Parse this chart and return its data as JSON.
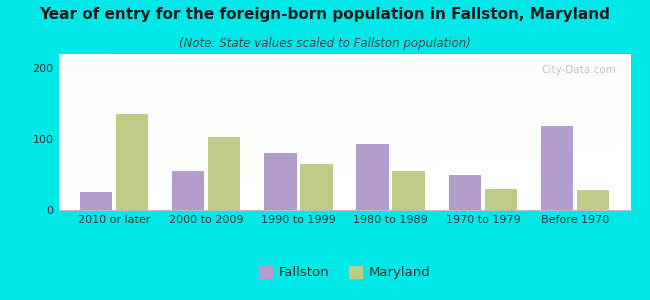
{
  "title": "Year of entry for the foreign-born population in Fallston, Maryland",
  "subtitle": "(Note: State values scaled to Fallston population)",
  "categories": [
    "2010 or later",
    "2000 to 2009",
    "1990 to 1999",
    "1980 to 1989",
    "1970 to 1979",
    "Before 1970"
  ],
  "fallston_values": [
    25,
    55,
    80,
    93,
    50,
    118
  ],
  "maryland_values": [
    135,
    103,
    65,
    55,
    30,
    28
  ],
  "fallston_color": "#b39dcc",
  "maryland_color": "#bfcc88",
  "ylim": [
    0,
    220
  ],
  "yticks": [
    0,
    100,
    200
  ],
  "background_outer": "#00e8e8",
  "bar_width": 0.35,
  "title_fontsize": 11,
  "subtitle_fontsize": 8.5,
  "tick_fontsize": 8,
  "legend_fontsize": 9.5
}
